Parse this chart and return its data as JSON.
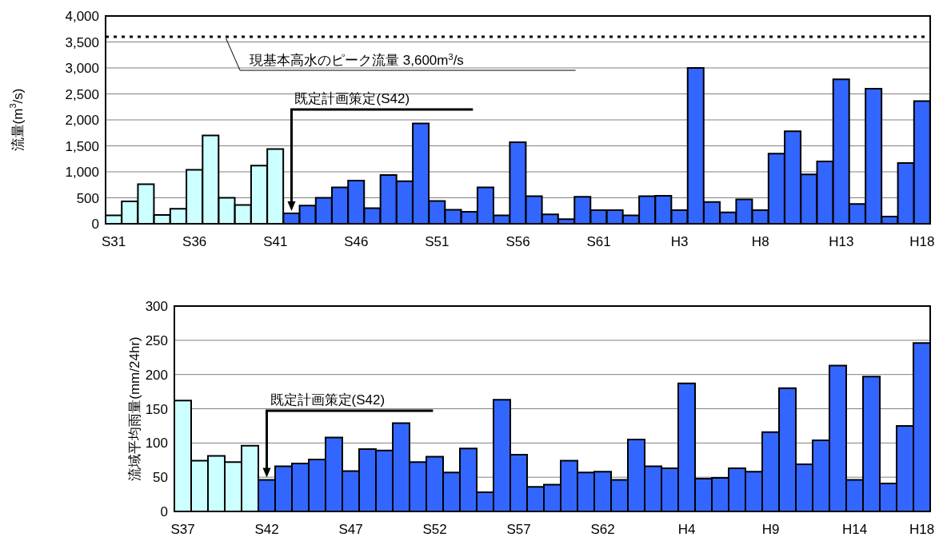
{
  "chart_data": [
    {
      "type": "bar",
      "ylabel": "流量(m$^{3}$/s)",
      "categories": [
        "S31",
        null,
        null,
        null,
        null,
        "S36",
        null,
        null,
        null,
        null,
        "S41",
        null,
        null,
        null,
        null,
        "S46",
        null,
        null,
        null,
        null,
        "S51",
        null,
        null,
        null,
        null,
        "S56",
        null,
        null,
        null,
        null,
        "S61",
        null,
        null,
        null,
        null,
        "H3",
        null,
        null,
        null,
        null,
        "H8",
        null,
        null,
        null,
        null,
        "H13",
        null,
        null,
        null,
        null,
        "H18"
      ],
      "values": [
        160,
        430,
        760,
        170,
        290,
        1040,
        1700,
        500,
        360,
        1120,
        1440,
        200,
        350,
        500,
        700,
        830,
        300,
        940,
        820,
        1930,
        440,
        270,
        230,
        700,
        160,
        1570,
        530,
        180,
        90,
        520,
        260,
        260,
        160,
        530,
        540,
        260,
        3000,
        420,
        220,
        470,
        260,
        1350,
        1780,
        950,
        1200,
        2780,
        380,
        2600,
        140,
        1170,
        2360
      ],
      "colors": [
        "#ccffff",
        "#ccffff",
        "#ccffff",
        "#ccffff",
        "#ccffff",
        "#ccffff",
        "#ccffff",
        "#ccffff",
        "#ccffff",
        "#ccffff",
        "#ccffff",
        "#3366ff",
        "#3366ff",
        "#3366ff",
        "#3366ff",
        "#3366ff",
        "#3366ff",
        "#3366ff",
        "#3366ff",
        "#3366ff",
        "#3366ff",
        "#3366ff",
        "#3366ff",
        "#3366ff",
        "#3366ff",
        "#3366ff",
        "#3366ff",
        "#3366ff",
        "#3366ff",
        "#3366ff",
        "#3366ff",
        "#3366ff",
        "#3366ff",
        "#3366ff",
        "#3366ff",
        "#3366ff",
        "#3366ff",
        "#3366ff",
        "#3366ff",
        "#3366ff",
        "#3366ff",
        "#3366ff",
        "#3366ff",
        "#3366ff",
        "#3366ff",
        "#3366ff",
        "#3366ff",
        "#3366ff",
        "#3366ff",
        "#3366ff",
        "#3366ff"
      ],
      "ylim": [
        0,
        4000
      ],
      "yticks": [
        0,
        500,
        {
          "value": 1000,
          "label": "1,000"
        },
        {
          "value": 1500,
          "label": "1,500"
        },
        {
          "value": 2000,
          "label": "2,000"
        },
        {
          "value": 2500,
          "label": "2,500"
        },
        {
          "value": 3000,
          "label": "3,000"
        },
        {
          "value": 3500,
          "label": "3,500"
        },
        {
          "value": 4000,
          "label": "4,000"
        }
      ],
      "grid": "y",
      "ref_lines": [
        {
          "axis": "y",
          "value": 3600,
          "label": "現基本高水のピーク流量 3,600m$^{3}$/s",
          "line_style": "dotted",
          "color": "#000000"
        }
      ],
      "annotations": [
        "既定計画策定(S42)"
      ]
    },
    {
      "type": "bar",
      "ylabel": "流域平均雨量(mm/24hr)",
      "categories": [
        "S37",
        null,
        null,
        null,
        null,
        "S42",
        null,
        null,
        null,
        null,
        "S47",
        null,
        null,
        null,
        null,
        "S52",
        null,
        null,
        null,
        null,
        "S57",
        null,
        null,
        null,
        null,
        "S62",
        null,
        null,
        null,
        null,
        "H4",
        null,
        null,
        null,
        null,
        "H9",
        null,
        null,
        null,
        null,
        "H14",
        null,
        null,
        null,
        "H18"
      ],
      "values": [
        162,
        74,
        81,
        72,
        96,
        46,
        66,
        70,
        76,
        108,
        59,
        91,
        89,
        129,
        72,
        80,
        57,
        92,
        28,
        163,
        83,
        36,
        39,
        74,
        57,
        58,
        46,
        105,
        66,
        63,
        187,
        48,
        49,
        63,
        58,
        116,
        180,
        69,
        104,
        213,
        46,
        197,
        41,
        125,
        246
      ],
      "colors": [
        "#ccffff",
        "#ccffff",
        "#ccffff",
        "#ccffff",
        "#ccffff",
        "#3366ff",
        "#3366ff",
        "#3366ff",
        "#3366ff",
        "#3366ff",
        "#3366ff",
        "#3366ff",
        "#3366ff",
        "#3366ff",
        "#3366ff",
        "#3366ff",
        "#3366ff",
        "#3366ff",
        "#3366ff",
        "#3366ff",
        "#3366ff",
        "#3366ff",
        "#3366ff",
        "#3366ff",
        "#3366ff",
        "#3366ff",
        "#3366ff",
        "#3366ff",
        "#3366ff",
        "#3366ff",
        "#3366ff",
        "#3366ff",
        "#3366ff",
        "#3366ff",
        "#3366ff",
        "#3366ff",
        "#3366ff",
        "#3366ff",
        "#3366ff",
        "#3366ff",
        "#3366ff",
        "#3366ff",
        "#3366ff",
        "#3366ff",
        "#3366ff"
      ],
      "ylim": [
        0,
        300
      ],
      "yticks": [
        0,
        50,
        100,
        150,
        200,
        250,
        300
      ],
      "grid": "y",
      "annotations": [
        "既定計画策定(S42)"
      ]
    }
  ]
}
